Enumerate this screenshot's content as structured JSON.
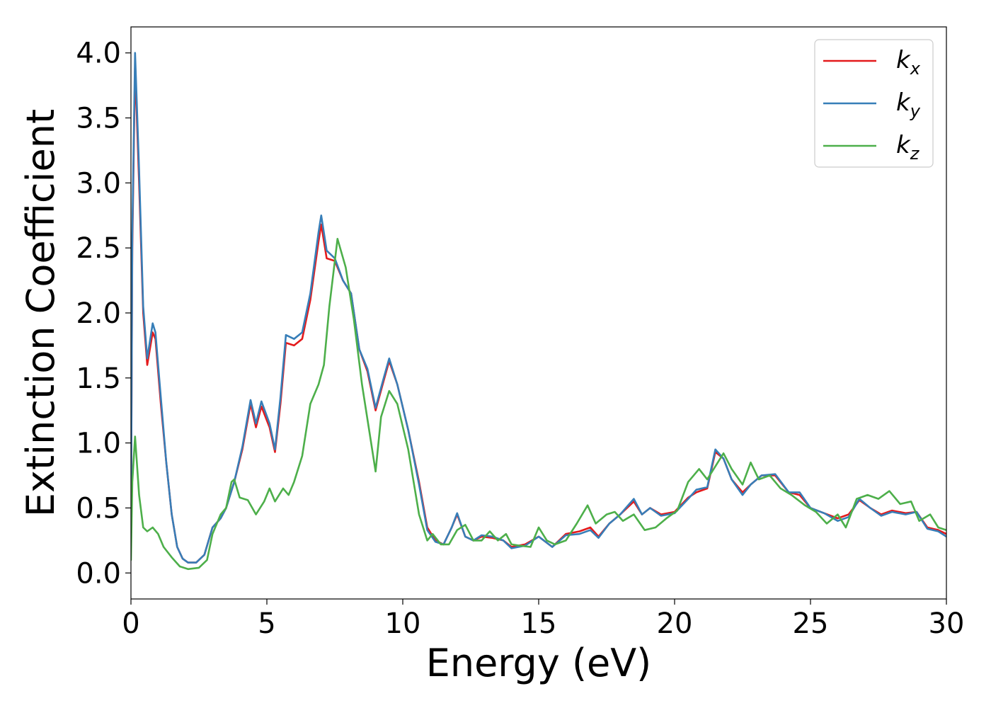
{
  "chart_data": {
    "type": "line",
    "xlabel": "Energy (eV)",
    "ylabel": "Extinction Coefficient",
    "xlim": [
      0,
      30
    ],
    "ylim": [
      -0.2,
      4.2
    ],
    "xticks": [
      0,
      5,
      10,
      15,
      20,
      25,
      30
    ],
    "xtick_labels": [
      "0",
      "5",
      "10",
      "15",
      "20",
      "25",
      "30"
    ],
    "yticks": [
      0.0,
      0.5,
      1.0,
      1.5,
      2.0,
      2.5,
      3.0,
      3.5,
      4.0
    ],
    "ytick_labels": [
      "0.0",
      "0.5",
      "1.0",
      "1.5",
      "2.0",
      "2.5",
      "3.0",
      "3.5",
      "4.0"
    ],
    "grid": false,
    "legend_position": "top-right",
    "series": [
      {
        "base": "k",
        "sub": "x",
        "color": "#e41a1c",
        "points": [
          [
            0,
            0.3
          ],
          [
            0.05,
            2.5
          ],
          [
            0.15,
            3.9
          ],
          [
            0.3,
            3.0
          ],
          [
            0.45,
            2.0
          ],
          [
            0.6,
            1.6
          ],
          [
            0.8,
            1.85
          ],
          [
            0.9,
            1.8
          ],
          [
            1.1,
            1.3
          ],
          [
            1.3,
            0.85
          ],
          [
            1.5,
            0.45
          ],
          [
            1.7,
            0.2
          ],
          [
            1.9,
            0.11
          ],
          [
            2.1,
            0.08
          ],
          [
            2.4,
            0.08
          ],
          [
            2.7,
            0.14
          ],
          [
            3.0,
            0.35
          ],
          [
            3.3,
            0.42
          ],
          [
            3.5,
            0.5
          ],
          [
            3.8,
            0.7
          ],
          [
            4.1,
            0.95
          ],
          [
            4.4,
            1.3
          ],
          [
            4.6,
            1.12
          ],
          [
            4.8,
            1.28
          ],
          [
            5.1,
            1.12
          ],
          [
            5.3,
            0.93
          ],
          [
            5.5,
            1.3
          ],
          [
            5.7,
            1.77
          ],
          [
            6.0,
            1.75
          ],
          [
            6.3,
            1.8
          ],
          [
            6.6,
            2.1
          ],
          [
            6.9,
            2.55
          ],
          [
            7.0,
            2.68
          ],
          [
            7.2,
            2.42
          ],
          [
            7.5,
            2.4
          ],
          [
            7.8,
            2.25
          ],
          [
            8.1,
            2.15
          ],
          [
            8.4,
            1.72
          ],
          [
            8.7,
            1.55
          ],
          [
            9.0,
            1.25
          ],
          [
            9.3,
            1.48
          ],
          [
            9.5,
            1.63
          ],
          [
            9.8,
            1.45
          ],
          [
            10.2,
            1.1
          ],
          [
            10.6,
            0.7
          ],
          [
            10.9,
            0.35
          ],
          [
            11.2,
            0.25
          ],
          [
            11.5,
            0.22
          ],
          [
            11.8,
            0.35
          ],
          [
            12.0,
            0.45
          ],
          [
            12.3,
            0.28
          ],
          [
            12.6,
            0.25
          ],
          [
            12.9,
            0.28
          ],
          [
            13.3,
            0.27
          ],
          [
            13.7,
            0.25
          ],
          [
            14.0,
            0.2
          ],
          [
            14.5,
            0.22
          ],
          [
            15.0,
            0.28
          ],
          [
            15.5,
            0.2
          ],
          [
            16.0,
            0.3
          ],
          [
            16.5,
            0.32
          ],
          [
            16.9,
            0.35
          ],
          [
            17.2,
            0.28
          ],
          [
            17.6,
            0.38
          ],
          [
            18.0,
            0.45
          ],
          [
            18.5,
            0.55
          ],
          [
            18.8,
            0.45
          ],
          [
            19.1,
            0.5
          ],
          [
            19.5,
            0.45
          ],
          [
            20.0,
            0.47
          ],
          [
            20.5,
            0.58
          ],
          [
            20.8,
            0.62
          ],
          [
            21.2,
            0.65
          ],
          [
            21.5,
            0.93
          ],
          [
            21.8,
            0.88
          ],
          [
            22.1,
            0.72
          ],
          [
            22.5,
            0.62
          ],
          [
            22.8,
            0.68
          ],
          [
            23.2,
            0.75
          ],
          [
            23.7,
            0.75
          ],
          [
            24.2,
            0.62
          ],
          [
            24.6,
            0.6
          ],
          [
            25.0,
            0.5
          ],
          [
            25.5,
            0.46
          ],
          [
            26.0,
            0.42
          ],
          [
            26.4,
            0.45
          ],
          [
            26.8,
            0.56
          ],
          [
            27.2,
            0.5
          ],
          [
            27.6,
            0.45
          ],
          [
            28.0,
            0.48
          ],
          [
            28.5,
            0.46
          ],
          [
            28.9,
            0.47
          ],
          [
            29.3,
            0.35
          ],
          [
            29.7,
            0.33
          ],
          [
            30.0,
            0.3
          ]
        ]
      },
      {
        "base": "k",
        "sub": "y",
        "color": "#377eb8",
        "points": [
          [
            0,
            0.3
          ],
          [
            0.05,
            2.6
          ],
          [
            0.15,
            4.0
          ],
          [
            0.3,
            3.1
          ],
          [
            0.45,
            2.05
          ],
          [
            0.6,
            1.65
          ],
          [
            0.8,
            1.92
          ],
          [
            0.9,
            1.85
          ],
          [
            1.1,
            1.35
          ],
          [
            1.3,
            0.85
          ],
          [
            1.5,
            0.45
          ],
          [
            1.7,
            0.2
          ],
          [
            1.9,
            0.11
          ],
          [
            2.1,
            0.08
          ],
          [
            2.4,
            0.08
          ],
          [
            2.7,
            0.14
          ],
          [
            3.0,
            0.35
          ],
          [
            3.3,
            0.42
          ],
          [
            3.5,
            0.5
          ],
          [
            3.8,
            0.7
          ],
          [
            4.1,
            0.97
          ],
          [
            4.4,
            1.33
          ],
          [
            4.6,
            1.15
          ],
          [
            4.8,
            1.32
          ],
          [
            5.1,
            1.15
          ],
          [
            5.3,
            0.95
          ],
          [
            5.5,
            1.35
          ],
          [
            5.7,
            1.83
          ],
          [
            6.0,
            1.8
          ],
          [
            6.3,
            1.85
          ],
          [
            6.6,
            2.15
          ],
          [
            6.9,
            2.62
          ],
          [
            7.0,
            2.75
          ],
          [
            7.2,
            2.48
          ],
          [
            7.5,
            2.42
          ],
          [
            7.8,
            2.25
          ],
          [
            8.1,
            2.15
          ],
          [
            8.4,
            1.72
          ],
          [
            8.7,
            1.57
          ],
          [
            9.0,
            1.27
          ],
          [
            9.3,
            1.5
          ],
          [
            9.5,
            1.65
          ],
          [
            9.8,
            1.45
          ],
          [
            10.2,
            1.1
          ],
          [
            10.6,
            0.68
          ],
          [
            10.9,
            0.33
          ],
          [
            11.2,
            0.24
          ],
          [
            11.5,
            0.22
          ],
          [
            11.8,
            0.35
          ],
          [
            12.0,
            0.46
          ],
          [
            12.3,
            0.28
          ],
          [
            12.6,
            0.25
          ],
          [
            12.9,
            0.29
          ],
          [
            13.3,
            0.28
          ],
          [
            13.7,
            0.25
          ],
          [
            14.0,
            0.19
          ],
          [
            14.5,
            0.21
          ],
          [
            15.0,
            0.28
          ],
          [
            15.5,
            0.2
          ],
          [
            16.0,
            0.29
          ],
          [
            16.5,
            0.3
          ],
          [
            16.9,
            0.33
          ],
          [
            17.2,
            0.27
          ],
          [
            17.6,
            0.38
          ],
          [
            18.0,
            0.45
          ],
          [
            18.5,
            0.57
          ],
          [
            18.8,
            0.45
          ],
          [
            19.1,
            0.5
          ],
          [
            19.5,
            0.44
          ],
          [
            20.0,
            0.46
          ],
          [
            20.5,
            0.57
          ],
          [
            20.8,
            0.64
          ],
          [
            21.2,
            0.66
          ],
          [
            21.5,
            0.95
          ],
          [
            21.8,
            0.88
          ],
          [
            22.1,
            0.72
          ],
          [
            22.5,
            0.6
          ],
          [
            22.8,
            0.68
          ],
          [
            23.2,
            0.75
          ],
          [
            23.7,
            0.76
          ],
          [
            24.2,
            0.62
          ],
          [
            24.6,
            0.62
          ],
          [
            25.0,
            0.5
          ],
          [
            25.5,
            0.46
          ],
          [
            26.0,
            0.4
          ],
          [
            26.4,
            0.43
          ],
          [
            26.8,
            0.57
          ],
          [
            27.2,
            0.5
          ],
          [
            27.6,
            0.44
          ],
          [
            28.0,
            0.47
          ],
          [
            28.5,
            0.45
          ],
          [
            28.9,
            0.47
          ],
          [
            29.3,
            0.34
          ],
          [
            29.7,
            0.32
          ],
          [
            30.0,
            0.28
          ]
        ]
      },
      {
        "base": "k",
        "sub": "z",
        "color": "#4daf4a",
        "points": [
          [
            0,
            0.1
          ],
          [
            0.05,
            0.7
          ],
          [
            0.15,
            1.05
          ],
          [
            0.3,
            0.6
          ],
          [
            0.45,
            0.35
          ],
          [
            0.6,
            0.32
          ],
          [
            0.8,
            0.35
          ],
          [
            1.0,
            0.3
          ],
          [
            1.2,
            0.2
          ],
          [
            1.5,
            0.12
          ],
          [
            1.8,
            0.05
          ],
          [
            2.1,
            0.03
          ],
          [
            2.5,
            0.04
          ],
          [
            2.8,
            0.1
          ],
          [
            3.0,
            0.3
          ],
          [
            3.3,
            0.45
          ],
          [
            3.5,
            0.5
          ],
          [
            3.7,
            0.7
          ],
          [
            3.8,
            0.72
          ],
          [
            4.0,
            0.58
          ],
          [
            4.3,
            0.56
          ],
          [
            4.6,
            0.45
          ],
          [
            4.9,
            0.55
          ],
          [
            5.1,
            0.65
          ],
          [
            5.3,
            0.55
          ],
          [
            5.6,
            0.65
          ],
          [
            5.8,
            0.6
          ],
          [
            6.0,
            0.7
          ],
          [
            6.3,
            0.9
          ],
          [
            6.6,
            1.3
          ],
          [
            6.9,
            1.45
          ],
          [
            7.1,
            1.6
          ],
          [
            7.3,
            2.05
          ],
          [
            7.6,
            2.57
          ],
          [
            7.9,
            2.35
          ],
          [
            8.2,
            1.95
          ],
          [
            8.5,
            1.45
          ],
          [
            8.8,
            1.05
          ],
          [
            9.0,
            0.78
          ],
          [
            9.2,
            1.2
          ],
          [
            9.5,
            1.4
          ],
          [
            9.8,
            1.3
          ],
          [
            10.2,
            0.95
          ],
          [
            10.6,
            0.45
          ],
          [
            10.9,
            0.25
          ],
          [
            11.1,
            0.3
          ],
          [
            11.4,
            0.22
          ],
          [
            11.7,
            0.22
          ],
          [
            12.0,
            0.33
          ],
          [
            12.3,
            0.37
          ],
          [
            12.6,
            0.25
          ],
          [
            12.9,
            0.25
          ],
          [
            13.2,
            0.32
          ],
          [
            13.5,
            0.25
          ],
          [
            13.8,
            0.3
          ],
          [
            14.0,
            0.22
          ],
          [
            14.3,
            0.21
          ],
          [
            14.7,
            0.2
          ],
          [
            15.0,
            0.35
          ],
          [
            15.3,
            0.25
          ],
          [
            15.6,
            0.22
          ],
          [
            16.0,
            0.25
          ],
          [
            16.4,
            0.38
          ],
          [
            16.8,
            0.52
          ],
          [
            17.1,
            0.38
          ],
          [
            17.5,
            0.45
          ],
          [
            17.8,
            0.47
          ],
          [
            18.1,
            0.4
          ],
          [
            18.5,
            0.45
          ],
          [
            18.9,
            0.33
          ],
          [
            19.3,
            0.35
          ],
          [
            19.7,
            0.42
          ],
          [
            20.1,
            0.48
          ],
          [
            20.5,
            0.7
          ],
          [
            20.9,
            0.8
          ],
          [
            21.2,
            0.72
          ],
          [
            21.5,
            0.82
          ],
          [
            21.8,
            0.92
          ],
          [
            22.1,
            0.8
          ],
          [
            22.5,
            0.68
          ],
          [
            22.8,
            0.85
          ],
          [
            23.1,
            0.72
          ],
          [
            23.5,
            0.75
          ],
          [
            23.9,
            0.65
          ],
          [
            24.3,
            0.6
          ],
          [
            24.8,
            0.52
          ],
          [
            25.2,
            0.47
          ],
          [
            25.6,
            0.38
          ],
          [
            26.0,
            0.45
          ],
          [
            26.3,
            0.35
          ],
          [
            26.7,
            0.57
          ],
          [
            27.1,
            0.6
          ],
          [
            27.5,
            0.57
          ],
          [
            27.9,
            0.63
          ],
          [
            28.3,
            0.53
          ],
          [
            28.7,
            0.55
          ],
          [
            29.0,
            0.4
          ],
          [
            29.4,
            0.45
          ],
          [
            29.7,
            0.35
          ],
          [
            30.0,
            0.33
          ]
        ]
      }
    ]
  }
}
